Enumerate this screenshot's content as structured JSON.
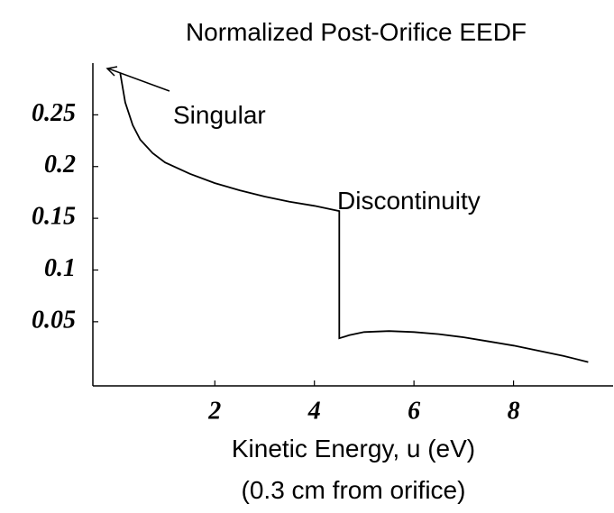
{
  "chart_data": {
    "type": "line",
    "title": "Normalized Post-Orifice EEDF",
    "xlabel": "Kinetic Energy, u (eV)",
    "xlabel_note": "(0.3 cm from orifice)",
    "annotations": [
      "Singular",
      "Discontinuity"
    ],
    "x": [
      0.1,
      0.2,
      0.35,
      0.5,
      0.75,
      1,
      1.5,
      2,
      2.5,
      3,
      3.5,
      4,
      4.5,
      4.5,
      4.7,
      5,
      5.5,
      6,
      6.5,
      7,
      7.5,
      8,
      8.5,
      9,
      9.5
    ],
    "values": [
      0.29,
      0.262,
      0.24,
      0.226,
      0.213,
      0.204,
      0.193,
      0.184,
      0.177,
      0.171,
      0.166,
      0.162,
      0.157,
      0.034,
      0.037,
      0.04,
      0.041,
      0.04,
      0.038,
      0.035,
      0.031,
      0.027,
      0.022,
      0.017,
      0.011
    ],
    "color": "#000000",
    "xlim": [
      -0.45,
      10
    ],
    "ylim": [
      -0.012,
      0.3
    ],
    "xticks": [
      2,
      4,
      6,
      8
    ],
    "yticks": [
      0.05,
      0.1,
      0.15,
      0.2,
      0.25
    ],
    "grid": false
  }
}
